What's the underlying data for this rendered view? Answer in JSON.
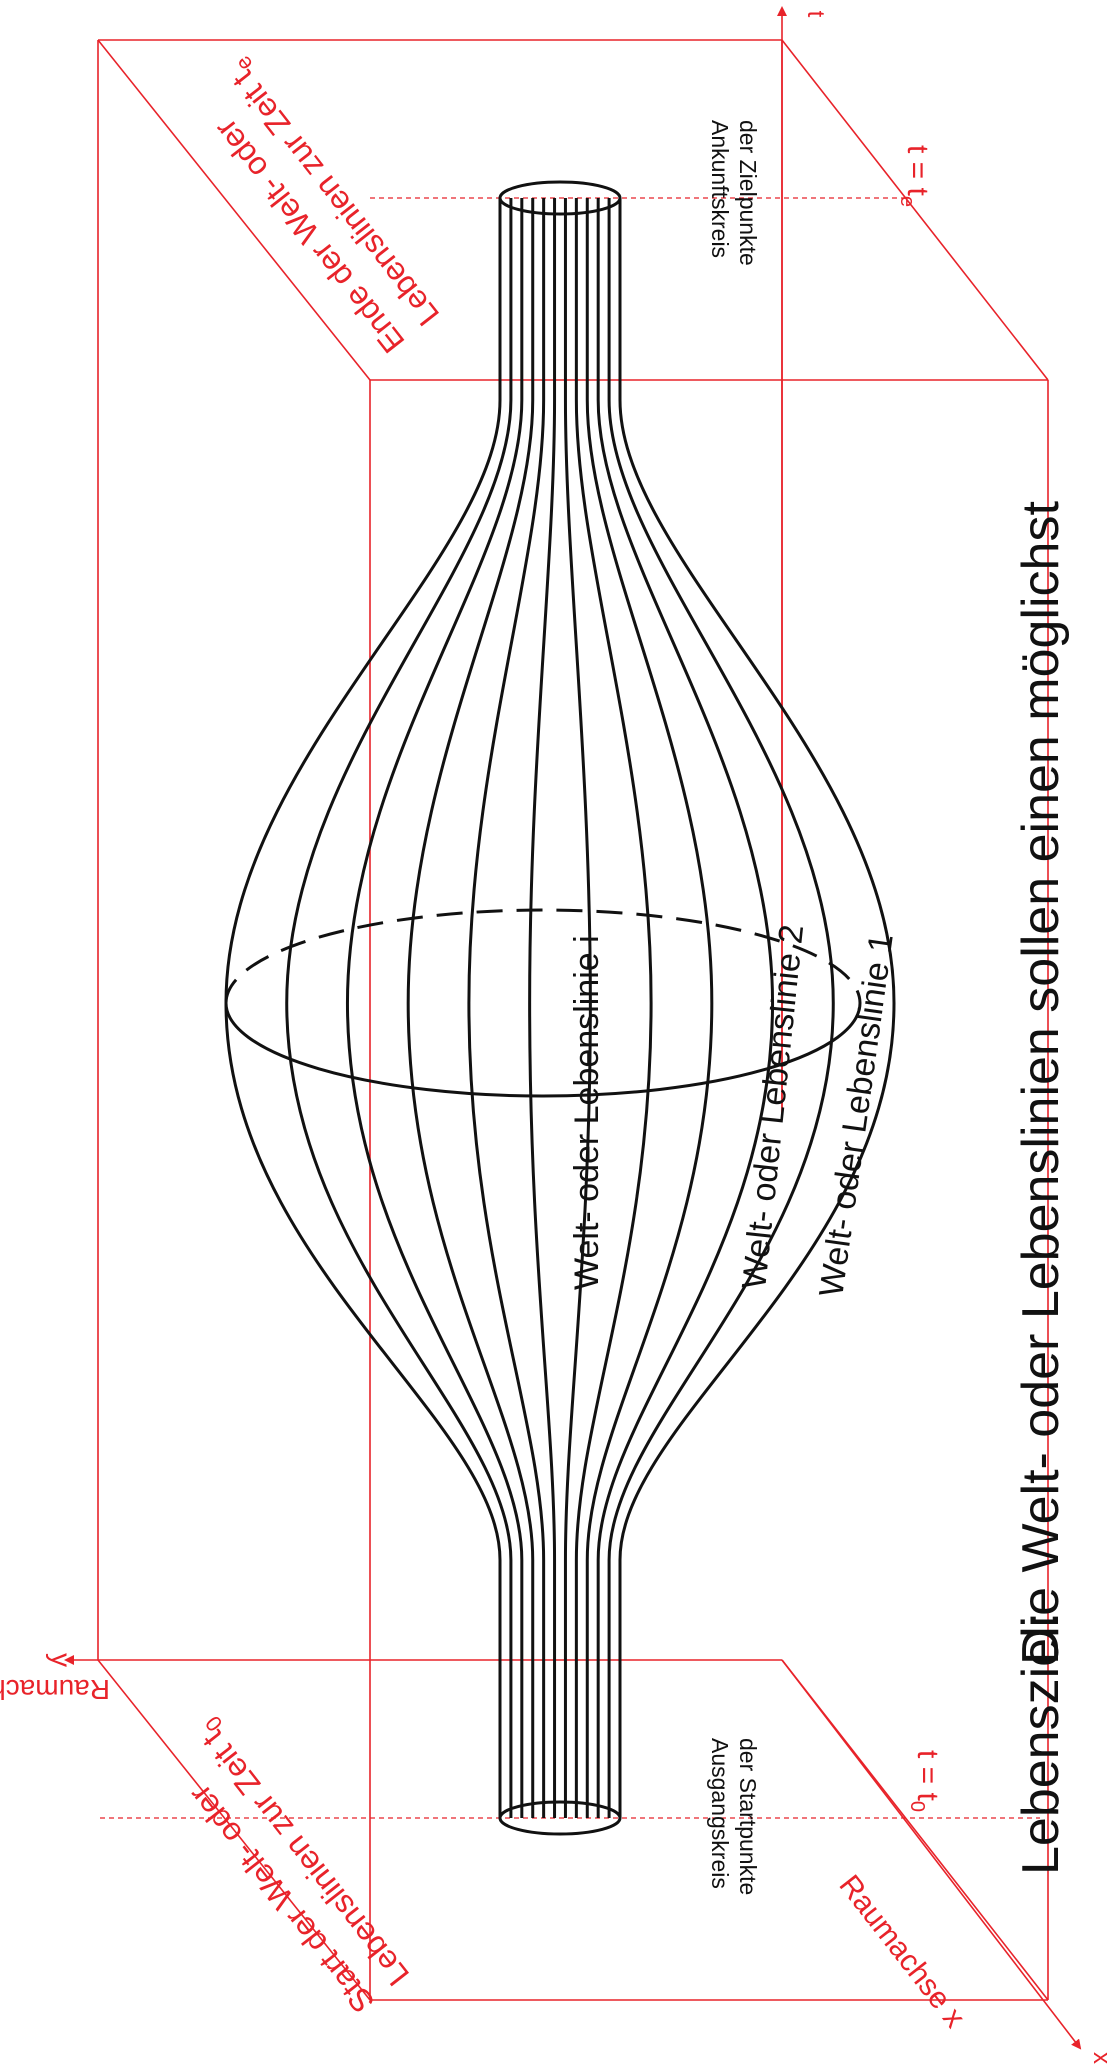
{
  "colors": {
    "frame": "#e8232a",
    "lines": "#111111",
    "background": "#ffffff"
  },
  "axes": {
    "t": "t",
    "y": "y",
    "x": "x",
    "y_label": "Raumachse y",
    "x_label": "Raumachse x"
  },
  "times": {
    "t_end_main": "t = t",
    "t_end_sub": "e",
    "t_start_main": "t = t",
    "t_start_sub": "0"
  },
  "corner_labels": {
    "end_line1": "Ende der Welt- oder",
    "end_line2": "Lebenslinien zur Zeit t",
    "end_sub": "e",
    "start_line1": "Start der Welt- oder",
    "start_line2": "Lebenslinien zur Zeit t",
    "start_sub": "0"
  },
  "circle_labels": {
    "arrival_line1": "Ankunftskreis",
    "arrival_line2": "der Zielpunkte",
    "origin_line1": "Ausgangskreis",
    "origin_line2": "der Startpunkte"
  },
  "lifeline_labels": {
    "i": "Welt- oder Lebenslinie i",
    "two": "Welt- oder Lebenslinie 2",
    "one": "Welt- oder Lebenslinie 1"
  },
  "caption": {
    "title": "Lebensziel:",
    "text": "Die Welt- oder Lebenslinien sollen einen möglichst"
  }
}
